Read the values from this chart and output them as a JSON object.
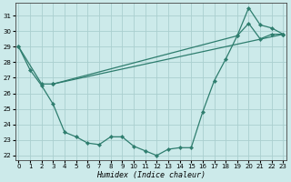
{
  "xlabel": "Humidex (Indice chaleur)",
  "bg_color": "#cceaea",
  "grid_color": "#aacfcf",
  "line_color": "#2e7d6e",
  "line1_x": [
    0,
    1,
    2,
    3,
    4,
    5,
    6,
    7,
    8,
    9,
    10,
    11,
    12,
    13,
    14,
    15,
    16,
    17,
    18,
    19,
    20,
    21,
    22,
    23
  ],
  "line1_y": [
    29.0,
    27.5,
    26.5,
    25.3,
    23.5,
    23.2,
    22.8,
    22.7,
    23.2,
    23.2,
    22.6,
    22.3,
    22.0,
    22.4,
    22.5,
    22.5,
    24.8,
    26.8,
    28.2,
    29.7,
    31.5,
    30.4,
    30.2,
    29.8
  ],
  "line2_x": [
    0,
    2,
    3,
    23
  ],
  "line2_y": [
    29.0,
    26.6,
    26.6,
    29.8
  ],
  "line3_x": [
    3,
    19,
    20,
    21,
    22,
    23
  ],
  "line3_y": [
    26.6,
    29.7,
    30.5,
    29.5,
    29.8,
    29.8
  ],
  "ylim_min": 21.7,
  "ylim_max": 31.8,
  "xlim_min": -0.3,
  "xlim_max": 23.3,
  "yticks": [
    22,
    23,
    24,
    25,
    26,
    27,
    28,
    29,
    30,
    31
  ],
  "xticks": [
    0,
    1,
    2,
    3,
    4,
    5,
    6,
    7,
    8,
    9,
    10,
    11,
    12,
    13,
    14,
    15,
    16,
    17,
    18,
    19,
    20,
    21,
    22,
    23
  ],
  "xlabel_fontsize": 6.0,
  "tick_fontsize": 5.0
}
